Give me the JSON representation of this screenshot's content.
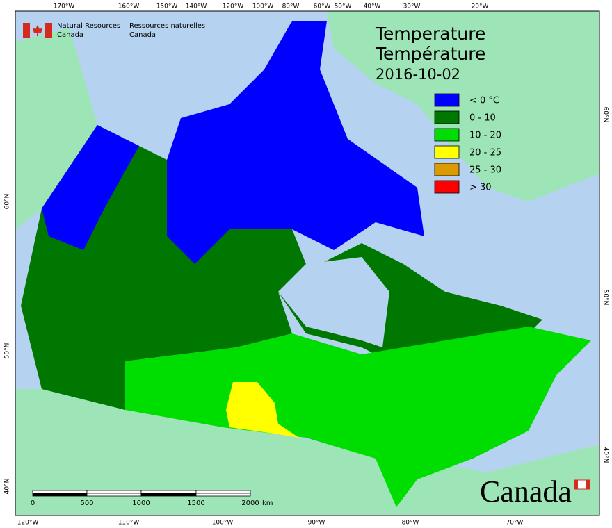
{
  "agency": {
    "en": [
      "Natural Resources",
      "Canada"
    ],
    "fr": [
      "Ressources naturelles",
      "Canada"
    ]
  },
  "title": [
    "Temperature",
    "Température",
    "2016-10-02"
  ],
  "legend": [
    {
      "label": "< 0 °C",
      "color": "#0000ff"
    },
    {
      "label": "0 - 10",
      "color": "#007700"
    },
    {
      "label": "10 - 20",
      "color": "#00dd00"
    },
    {
      "label": "20 - 25",
      "color": "#ffff00"
    },
    {
      "label": "25 - 30",
      "color": "#dd9900"
    },
    {
      "label": "> 30",
      "color": "#ff0000"
    }
  ],
  "graticule": {
    "top": [
      "170°W",
      "160°W",
      "150°W",
      "140°W",
      "120°W",
      "100°W",
      "80°W",
      "60°W",
      "50°W",
      "40°W",
      "30°W",
      "20°W"
    ],
    "bottom": [
      "120°W",
      "110°W",
      "100°W",
      "90°W",
      "80°W",
      "70°W"
    ],
    "left": [
      "60°N",
      "50°N",
      "40°N"
    ],
    "right": [
      "60°N",
      "50°N",
      "40°N"
    ]
  },
  "scale_bar": {
    "labels": [
      "0",
      "500",
      "1000",
      "1500",
      "2000"
    ],
    "unit": "km"
  },
  "wordmark": "Canada"
}
